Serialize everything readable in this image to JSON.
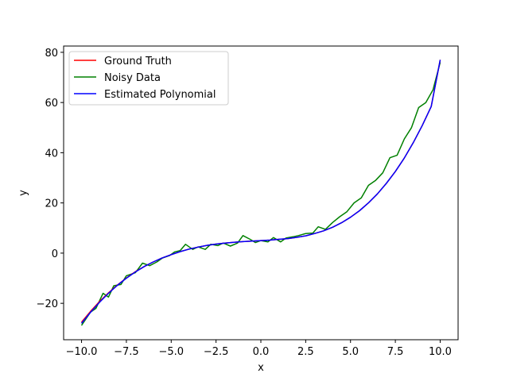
{
  "chart_data": {
    "type": "line",
    "title": "",
    "xlabel": "x",
    "ylabel": "y",
    "xlim": [
      -11.0,
      11.0
    ],
    "ylim": [
      -34.5,
      82.5
    ],
    "xticks": [
      -10.0,
      -7.5,
      -5.0,
      -2.5,
      0.0,
      2.5,
      5.0,
      7.5,
      10.0
    ],
    "xtick_labels": [
      "−10.0",
      "−7.5",
      "−5.0",
      "−2.5",
      "0.0",
      "2.5",
      "5.0",
      "7.5",
      "10.0"
    ],
    "yticks": [
      -20,
      0,
      20,
      40,
      60,
      80
    ],
    "ytick_labels": [
      "−20",
      "0",
      "20",
      "40",
      "60",
      "80"
    ],
    "grid": false,
    "legend_position": "top-left",
    "series": [
      {
        "name": "Ground Truth",
        "color": "#ff0000",
        "x": [
          -10,
          -9.5,
          -9,
          -8.5,
          -8,
          -7.5,
          -7,
          -6.5,
          -6,
          -5.5,
          -5,
          -4.5,
          -4,
          -3.5,
          -3,
          -2.5,
          -2,
          -1.5,
          -1,
          -0.5,
          0,
          0.5,
          1,
          1.5,
          2,
          2.5,
          3,
          3.5,
          4,
          4.5,
          5,
          5.5,
          6,
          6.5,
          7,
          7.5,
          8,
          8.5,
          9,
          9.5,
          10
        ],
        "values": [
          -27.5,
          -23.2,
          -19.3,
          -15.8,
          -12.7,
          -9.9,
          -7.4,
          -5.3,
          -3.5,
          -1.9,
          -0.6,
          0.6,
          1.6,
          2.4,
          3.1,
          3.6,
          4.0,
          4.3,
          4.6,
          4.8,
          5.0,
          5.2,
          5.5,
          5.8,
          6.3,
          6.9,
          7.8,
          8.9,
          10.3,
          12.1,
          14.3,
          16.9,
          20.0,
          23.6,
          27.8,
          32.5,
          37.9,
          44.0,
          50.8,
          58.4,
          77.0
        ]
      },
      {
        "name": "Noisy Data",
        "color": "#008000",
        "x": [
          -10,
          -9.5,
          -9.2,
          -8.8,
          -8.5,
          -8.2,
          -7.8,
          -7.5,
          -7,
          -6.6,
          -6.2,
          -5.8,
          -5.5,
          -5.1,
          -4.8,
          -4.5,
          -4.2,
          -3.8,
          -3.5,
          -3.1,
          -2.8,
          -2.4,
          -2.1,
          -1.7,
          -1.3,
          -1.0,
          -0.6,
          -0.3,
          0,
          0.4,
          0.7,
          1.1,
          1.4,
          1.8,
          2.1,
          2.5,
          2.9,
          3.2,
          3.6,
          4.0,
          4.4,
          4.8,
          5.2,
          5.6,
          6.0,
          6.4,
          6.8,
          7.2,
          7.6,
          8.0,
          8.4,
          8.8,
          9.2,
          9.6,
          10
        ],
        "values": [
          -28.8,
          -23.5,
          -22.0,
          -16.0,
          -17.5,
          -13.0,
          -12.5,
          -9.0,
          -7.8,
          -4.0,
          -5.0,
          -3.5,
          -2.0,
          -1.0,
          0.5,
          1.0,
          3.5,
          1.5,
          2.5,
          1.5,
          3.5,
          3.0,
          4.0,
          2.8,
          4.0,
          7.0,
          5.5,
          4.2,
          5.0,
          4.5,
          6.2,
          4.5,
          6.0,
          6.5,
          7.0,
          7.8,
          8.0,
          10.5,
          9.5,
          12.2,
          14.5,
          16.5,
          20.0,
          22.0,
          27.0,
          29.0,
          32.0,
          38.0,
          39.0,
          45.5,
          50.0,
          58.0,
          60.0,
          65.0,
          76.0
        ]
      },
      {
        "name": "Estimated Polynomial",
        "color": "#0000ff",
        "x": [
          -10,
          -9.5,
          -9,
          -8.5,
          -8,
          -7.5,
          -7,
          -6.5,
          -6,
          -5.5,
          -5,
          -4.5,
          -4,
          -3.5,
          -3,
          -2.5,
          -2,
          -1.5,
          -1,
          -0.5,
          0,
          0.5,
          1,
          1.5,
          2,
          2.5,
          3,
          3.5,
          4,
          4.5,
          5,
          5.5,
          6,
          6.5,
          7,
          7.5,
          8,
          8.5,
          9,
          9.5,
          10
        ],
        "values": [
          -28.0,
          -23.6,
          -19.6,
          -16.0,
          -12.8,
          -10.0,
          -7.5,
          -5.3,
          -3.5,
          -1.9,
          -0.6,
          0.6,
          1.6,
          2.4,
          3.1,
          3.6,
          4.0,
          4.3,
          4.6,
          4.8,
          5.0,
          5.2,
          5.5,
          5.8,
          6.3,
          6.9,
          7.8,
          8.9,
          10.3,
          12.1,
          14.3,
          16.9,
          20.0,
          23.6,
          27.8,
          32.5,
          37.9,
          44.0,
          50.8,
          58.4,
          77.0
        ]
      }
    ]
  }
}
